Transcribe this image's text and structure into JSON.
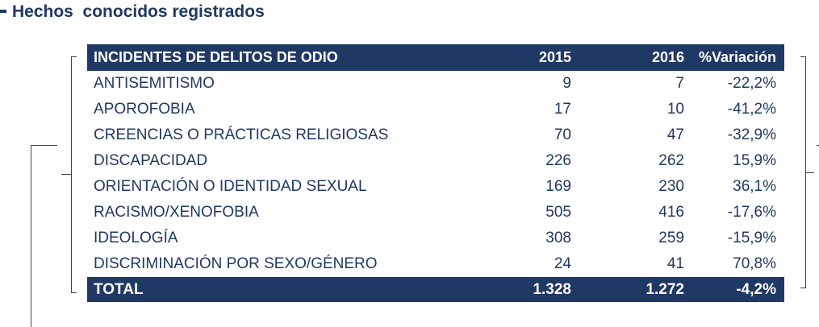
{
  "title": "Hechos  conocidos registrados",
  "table": {
    "headers": [
      "INCIDENTES DE DELITOS DE ODIO",
      "2015",
      "2016",
      "%Variación"
    ],
    "rows": [
      {
        "name": "ANTISEMITISMO",
        "y2015": "9",
        "y2016": "7",
        "variation": "-22,2%"
      },
      {
        "name": "APOROFOBIA",
        "y2015": "17",
        "y2016": "10",
        "variation": "-41,2%"
      },
      {
        "name": "CREENCIAS O PRÁCTICAS RELIGIOSAS",
        "y2015": "70",
        "y2016": "47",
        "variation": "-32,9%"
      },
      {
        "name": "DISCAPACIDAD",
        "y2015": "226",
        "y2016": "262",
        "variation": "15,9%"
      },
      {
        "name": "ORIENTACIÓN O IDENTIDAD SEXUAL",
        "y2015": "169",
        "y2016": "230",
        "variation": "36,1%"
      },
      {
        "name": "RACISMO/XENOFOBIA",
        "y2015": "505",
        "y2016": "416",
        "variation": "-17,6%"
      },
      {
        "name": "IDEOLOGÍA",
        "y2015": "308",
        "y2016": "259",
        "variation": "-15,9%"
      },
      {
        "name": "DISCRIMINACIÓN POR SEXO/GÉNERO",
        "y2015": "24",
        "y2016": "41",
        "variation": "70,8%"
      }
    ],
    "total": {
      "name": "TOTAL",
      "y2015": "1.328",
      "y2016": "1.272",
      "variation": "-4,2%"
    }
  },
  "colors": {
    "header_bg": "#1f3864",
    "text": "#1f3864"
  }
}
